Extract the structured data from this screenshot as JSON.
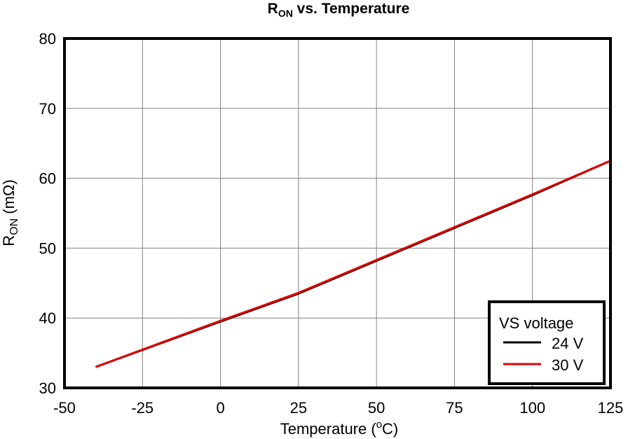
{
  "chart_data": {
    "type": "line",
    "title": {
      "main": "R",
      "sub": "ON",
      "rest": " vs. Temperature"
    },
    "xlabel": {
      "pre": "Temperature (",
      "sup": "o",
      "post": "C)"
    },
    "ylabel": {
      "main": "R",
      "sub": "ON",
      "rest": " (mΩ)"
    },
    "xlim": [
      -50,
      125
    ],
    "ylim": [
      30,
      80
    ],
    "xticks": [
      -50,
      -25,
      0,
      25,
      50,
      75,
      100,
      125
    ],
    "yticks": [
      30,
      40,
      50,
      60,
      70,
      80
    ],
    "x_tick_labels": [
      "-50",
      "-25",
      "0",
      "25",
      "50",
      "75",
      "100",
      "125"
    ],
    "y_tick_labels": [
      "30",
      "40",
      "50",
      "60",
      "70",
      "80"
    ],
    "grid": true,
    "legend": {
      "title": "VS voltage",
      "position": "bottom-right"
    },
    "series": [
      {
        "name": "24 V",
        "color": "#000000",
        "x": [
          -40,
          0,
          25,
          50,
          75,
          100,
          125
        ],
        "y": [
          33.0,
          39.5,
          43.5,
          48.2,
          52.9,
          57.6,
          62.5
        ]
      },
      {
        "name": "30 V",
        "color": "#e00000",
        "x": [
          -40,
          0,
          25,
          50,
          75,
          100,
          125
        ],
        "y": [
          33.0,
          39.6,
          43.6,
          48.3,
          53.0,
          57.7,
          62.5
        ]
      }
    ]
  }
}
